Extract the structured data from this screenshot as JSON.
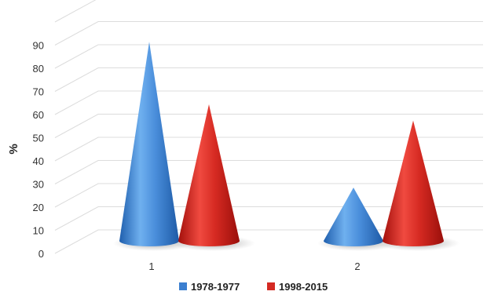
{
  "chart_data": {
    "type": "bar",
    "subtype": "3d-cone",
    "categories": [
      "1",
      "2"
    ],
    "series": [
      {
        "name": "1978-1977",
        "color": "#3b7fd0",
        "values": [
          86,
          23
        ]
      },
      {
        "name": "1998-2015",
        "color": "#d42a23",
        "values": [
          59,
          52
        ]
      }
    ],
    "ylabel": "%",
    "ylim": [
      0,
      100
    ],
    "yticks": [
      0,
      10,
      20,
      30,
      40,
      50,
      60,
      70,
      80,
      90
    ],
    "grid": true,
    "legend": "bottom"
  }
}
